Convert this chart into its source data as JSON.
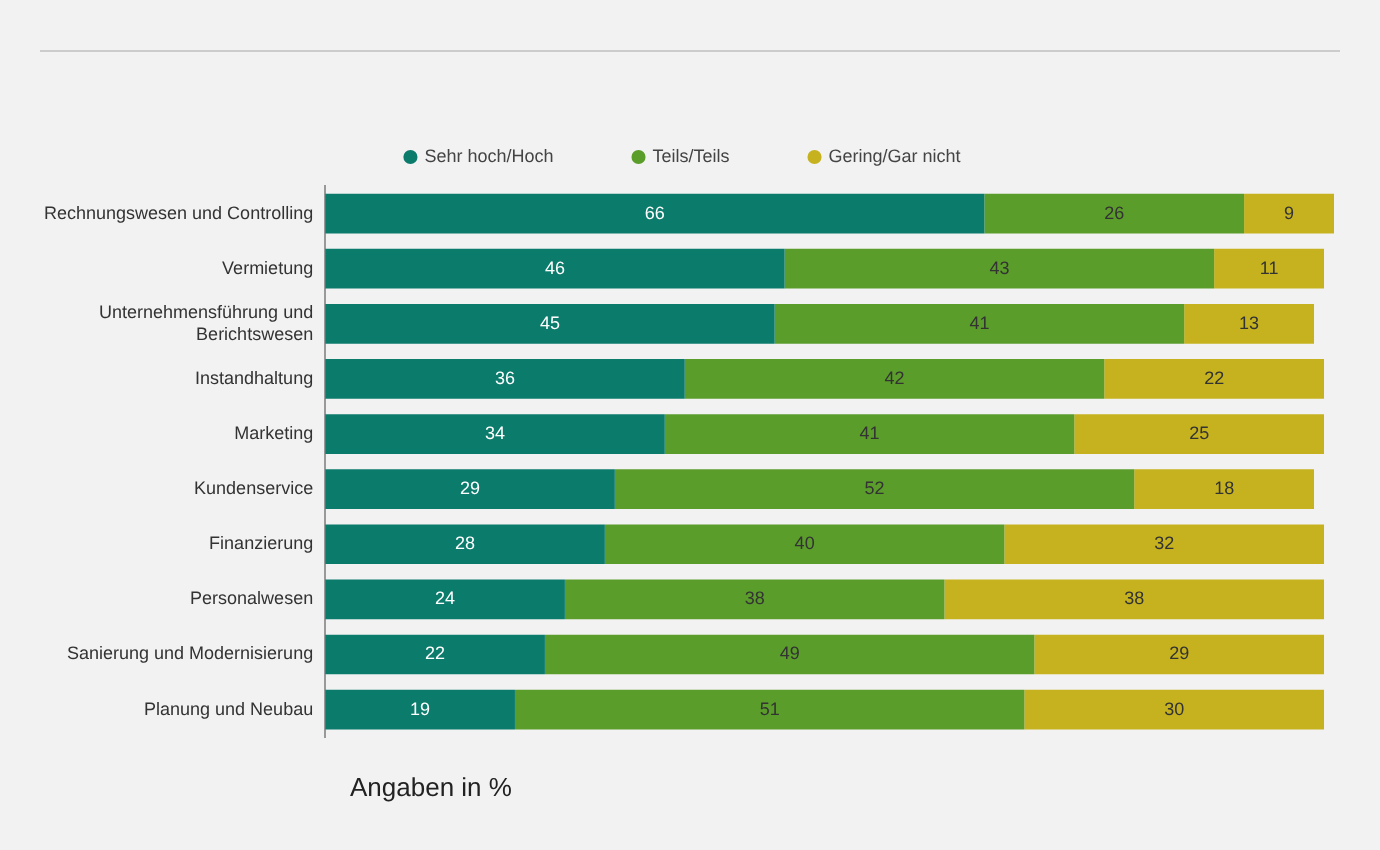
{
  "chart_data": {
    "type": "bar",
    "orientation": "horizontal",
    "stacked": true,
    "data_labels": true,
    "legend": "top",
    "marker": "circle",
    "categories": [
      "Rechnungswesen und Controlling",
      "Vermietung",
      "Unternehmensführung und Berichtswesen",
      "Instandhaltung",
      "Marketing",
      "Kundenservice",
      "Finanzierung",
      "Personalwesen",
      "Sanierung und Modernisierung",
      "Planung und Neubau"
    ],
    "series": [
      {
        "name": "Sehr hoch/Hoch",
        "color": "#0b7b6c",
        "values": [
          66,
          46,
          45,
          36,
          34,
          29,
          28,
          24,
          22,
          19
        ]
      },
      {
        "name": "Teils/Teils",
        "color": "#5b9d2b",
        "values": [
          26,
          43,
          41,
          42,
          41,
          52,
          40,
          38,
          49,
          51
        ]
      },
      {
        "name": "Gering/Gar nicht",
        "color": "#c6b21f",
        "values": [
          9,
          11,
          13,
          22,
          25,
          18,
          32,
          38,
          29,
          30
        ]
      }
    ],
    "annotations": [
      "Angaben in %"
    ]
  }
}
